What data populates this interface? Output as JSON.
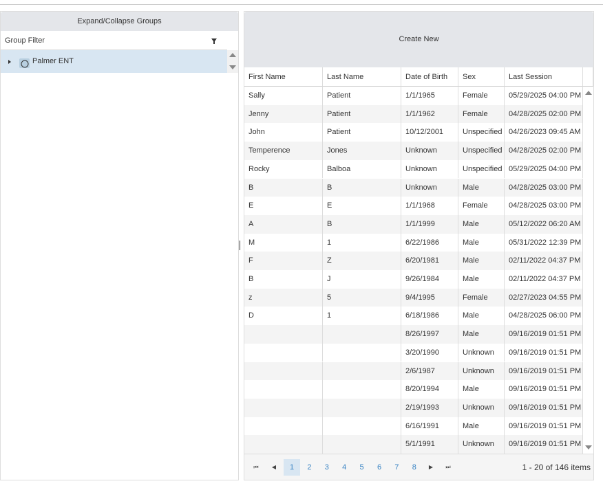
{
  "left_panel": {
    "expand_button": "Expand/Collapse Groups",
    "filter_label": "Group Filter",
    "tree": [
      {
        "label": "Palmer ENT"
      }
    ]
  },
  "right_panel": {
    "create_button": "Create New",
    "table": {
      "columns": [
        "First Name",
        "Last Name",
        "Date of Birth",
        "Sex",
        "Last Session"
      ],
      "rows": [
        [
          "Sally",
          "Patient",
          "1/1/1965",
          "Female",
          "05/29/2025 04:00 PM"
        ],
        [
          "Jenny",
          "Patient",
          "1/1/1962",
          "Female",
          "04/28/2025 02:00 PM"
        ],
        [
          "John",
          "Patient",
          "10/12/2001",
          "Unspecified",
          "04/26/2023 09:45 AM"
        ],
        [
          "Temperence",
          "Jones",
          "Unknown",
          "Unspecified",
          "04/28/2025 02:00 PM"
        ],
        [
          "Rocky",
          "Balboa",
          "Unknown",
          "Unspecified",
          "05/29/2025 04:00 PM"
        ],
        [
          "B",
          "B",
          "Unknown",
          "Male",
          "04/28/2025 03:00 PM"
        ],
        [
          "E",
          "E",
          "1/1/1968",
          "Female",
          "04/28/2025 03:00 PM"
        ],
        [
          "A",
          "B",
          "1/1/1999",
          "Male",
          "05/12/2022 06:20 AM"
        ],
        [
          "M",
          "1",
          "6/22/1986",
          "Male",
          "05/31/2022 12:39 PM"
        ],
        [
          "F",
          "Z",
          "6/20/1981",
          "Male",
          "02/11/2022 04:37 PM"
        ],
        [
          "B",
          "J",
          "9/26/1984",
          "Male",
          "02/11/2022 04:37 PM"
        ],
        [
          "z",
          "5",
          "9/4/1995",
          "Female",
          "02/27/2023 04:55 PM"
        ],
        [
          "D",
          "1",
          "6/18/1986",
          "Male",
          "04/28/2025 06:00 PM"
        ],
        [
          null,
          null,
          "8/26/1997",
          "Male",
          "09/16/2019 01:51 PM"
        ],
        [
          null,
          null,
          "3/20/1990",
          "Unknown",
          "09/16/2019 01:51 PM"
        ],
        [
          null,
          null,
          "2/6/1987",
          "Unknown",
          "09/16/2019 01:51 PM"
        ],
        [
          null,
          null,
          "8/20/1994",
          "Male",
          "09/16/2019 01:51 PM"
        ],
        [
          null,
          null,
          "2/19/1993",
          "Unknown",
          "09/16/2019 01:51 PM"
        ],
        [
          null,
          null,
          "6/16/1991",
          "Male",
          "09/16/2019 01:51 PM"
        ],
        [
          null,
          null,
          "5/1/1991",
          "Unknown",
          "09/16/2019 01:51 PM"
        ]
      ]
    },
    "pager": {
      "pages": [
        1,
        2,
        3,
        4,
        5,
        6,
        7,
        8
      ],
      "current_page": 1,
      "summary": "1 - 20 of 146 items"
    }
  }
}
